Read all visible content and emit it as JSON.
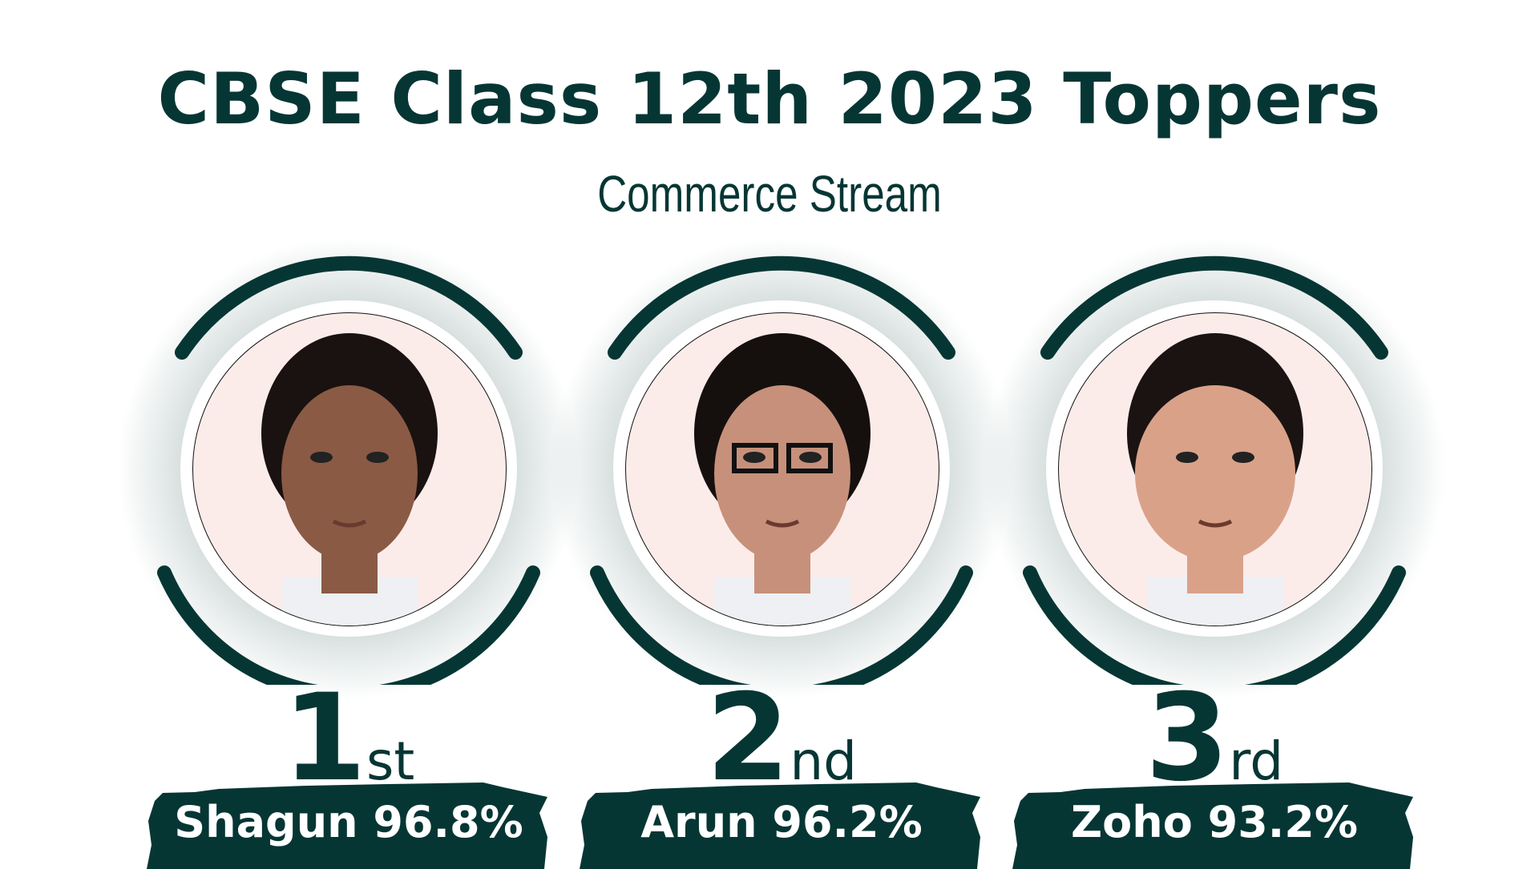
{
  "header": {
    "title": "CBSE Class 12th 2023 Toppers",
    "subtitle": "Commerce Stream"
  },
  "colors": {
    "primary": "#063634",
    "photo_background": "#fbecea"
  },
  "toppers": [
    {
      "rank": "1",
      "suffix": "st",
      "name_score": "Shagun 96.8%",
      "name": "Shagun",
      "score": "96.8%"
    },
    {
      "rank": "2",
      "suffix": "nd",
      "name_score": "Arun 96.2%",
      "name": "Arun",
      "score": "96.2%"
    },
    {
      "rank": "3",
      "suffix": "rd",
      "name_score": "Zoho 93.2%",
      "name": "Zoho",
      "score": "93.2%"
    }
  ]
}
